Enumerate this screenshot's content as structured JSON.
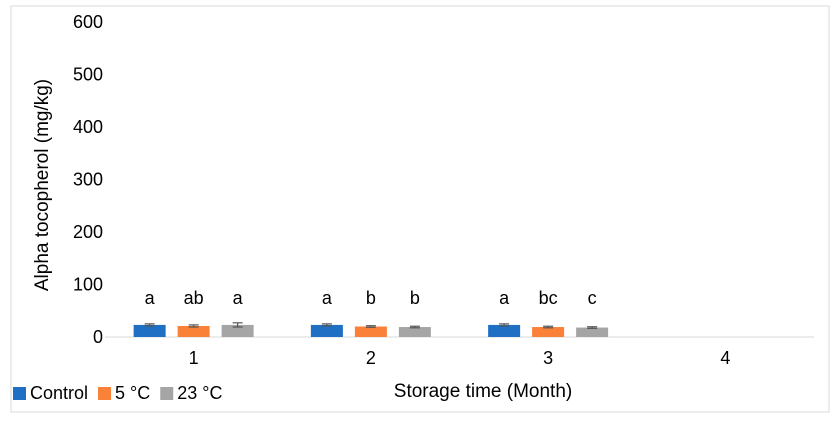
{
  "chart_data": {
    "type": "bar",
    "title": "",
    "xlabel": "Storage time (Month)",
    "ylabel": "Alpha tocopherol (mg/kg)",
    "ylim": [
      0,
      600
    ],
    "yticks": [
      0,
      100,
      200,
      300,
      400,
      500,
      600
    ],
    "categories": [
      "1",
      "2",
      "3",
      "4"
    ],
    "grid": false,
    "legend_position": "bottom-left",
    "series": [
      {
        "name": "Control",
        "color": "#1F6FC5",
        "values": [
          23,
          23,
          23,
          null
        ],
        "errors": [
          2,
          2,
          2,
          null
        ],
        "letters": [
          "a",
          "a",
          "a",
          ""
        ]
      },
      {
        "name": "5 °C",
        "color": "#F98138",
        "values": [
          21,
          20,
          19,
          null
        ],
        "errors": [
          2,
          1.5,
          1.5,
          null
        ],
        "letters": [
          "ab",
          "b",
          "bc",
          ""
        ]
      },
      {
        "name": "23 °C",
        "color": "#A5A5A5",
        "values": [
          23,
          19,
          18,
          null
        ],
        "errors": [
          4,
          1.5,
          1.5,
          null
        ],
        "letters": [
          "a",
          "b",
          "c",
          ""
        ]
      }
    ]
  }
}
